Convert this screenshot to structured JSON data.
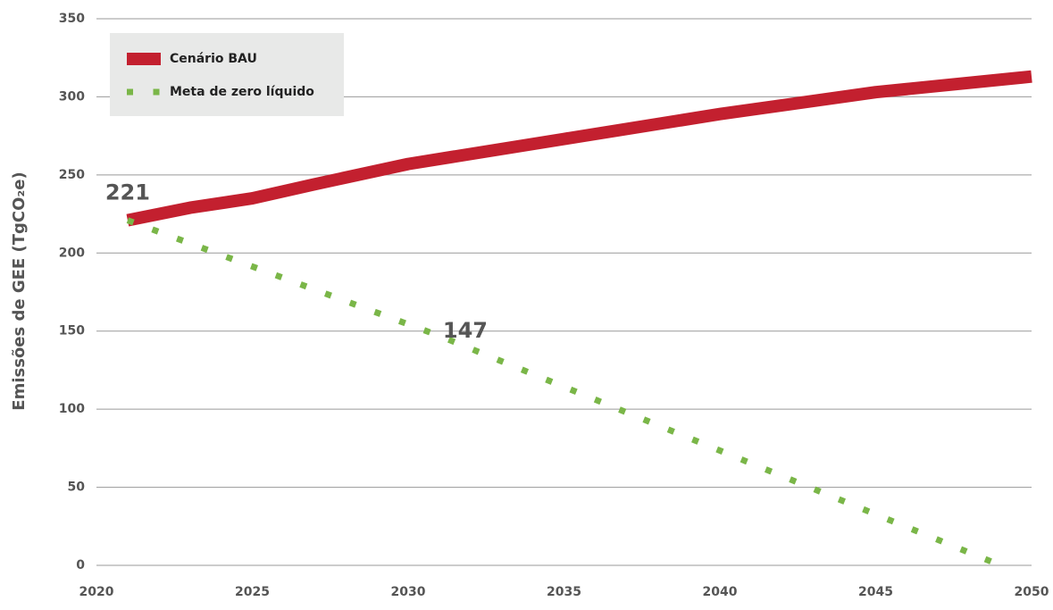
{
  "chart_data": {
    "type": "line",
    "y_label": "Emissões de GEE  (TgCO₂e)",
    "xlim": [
      2020,
      2050
    ],
    "xticks": [
      2020,
      2025,
      2030,
      2035,
      2040,
      2045,
      2050
    ],
    "ylim": [
      0,
      350
    ],
    "yticks": [
      0,
      50,
      100,
      150,
      200,
      250,
      300,
      350
    ],
    "grid": true,
    "legend": "upper left",
    "series": [
      {
        "name": "Cenário BAU",
        "color": "#c3202f",
        "style": "solid",
        "x": [
          2021,
          2023,
          2025,
          2027,
          2030,
          2035,
          2040,
          2045,
          2050
        ],
        "values": [
          221,
          229,
          235,
          244,
          257,
          273,
          289,
          303,
          313
        ],
        "data_labels": [
          0
        ]
      },
      {
        "name": "Meta de zero líquido",
        "color": "#7ab648",
        "style": "dotted",
        "x": [
          2021,
          2031,
          2049
        ],
        "values": [
          221,
          147,
          0
        ],
        "data_labels": [
          1
        ]
      }
    ]
  }
}
